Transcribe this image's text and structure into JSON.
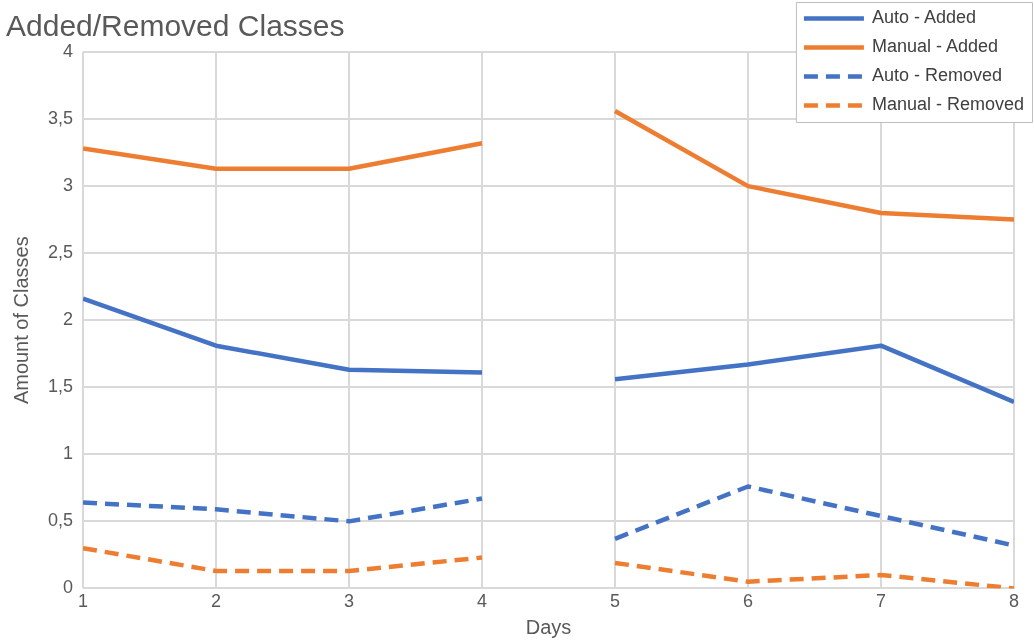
{
  "chart_data": {
    "type": "line",
    "title": "Added/Removed Classes",
    "xlabel": "Days",
    "ylabel": "Amount of Classes",
    "x": [
      1,
      2,
      3,
      4,
      4.5,
      5,
      6,
      7,
      8
    ],
    "series": [
      {
        "name": "Auto - Added",
        "color": "#4472c4",
        "line_style": "solid",
        "values": [
          2.16,
          1.81,
          1.63,
          1.61,
          null,
          1.56,
          1.67,
          1.81,
          1.39
        ]
      },
      {
        "name": "Manual - Added",
        "color": "#ed7d31",
        "line_style": "solid",
        "values": [
          3.28,
          3.13,
          3.13,
          3.32,
          null,
          3.56,
          3.0,
          2.8,
          2.75
        ]
      },
      {
        "name": "Auto - Removed",
        "color": "#4472c4",
        "line_style": "dashed",
        "values": [
          0.64,
          0.59,
          0.5,
          0.67,
          null,
          0.37,
          0.76,
          0.54,
          0.32
        ]
      },
      {
        "name": "Manual - Removed",
        "color": "#ed7d31",
        "line_style": "dashed",
        "values": [
          0.3,
          0.13,
          0.13,
          0.23,
          null,
          0.19,
          0.05,
          0.1,
          0.0
        ]
      }
    ],
    "xlim": [
      1,
      8
    ],
    "xticks": [
      1,
      2,
      3,
      4,
      5,
      6,
      7,
      8
    ],
    "ylim": [
      0,
      4
    ],
    "yticks": [
      0,
      {
        "value": 0.5,
        "label": "0,5"
      },
      1,
      {
        "value": 1.5,
        "label": "1,5"
      },
      2,
      {
        "value": 2.5,
        "label": "2,5"
      },
      3,
      {
        "value": 3.5,
        "label": "3,5"
      },
      4
    ],
    "grid": true,
    "legend": "top right",
    "marker": "none"
  }
}
